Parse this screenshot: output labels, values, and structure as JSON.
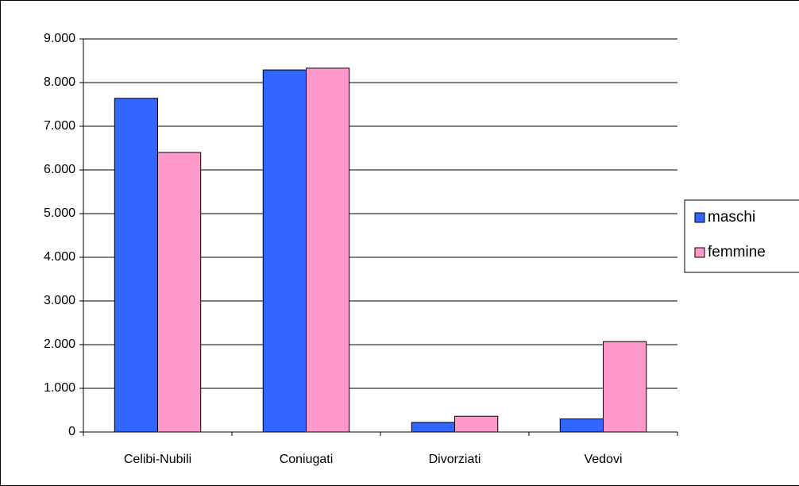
{
  "chart_data": {
    "type": "bar",
    "categories": [
      "Celibi-Nubili",
      "Coniugati",
      "Divorziati",
      "Vedovi"
    ],
    "series": [
      {
        "name": "maschi",
        "color": "#3366ff",
        "values": [
          7640,
          8290,
          220,
          300
        ]
      },
      {
        "name": "femmine",
        "color": "#ff99cc",
        "values": [
          6400,
          8330,
          360,
          2070
        ]
      }
    ],
    "ylim": [
      0,
      9000
    ],
    "yticks": [
      0,
      {
        "value": 1000,
        "label": "1.000"
      },
      {
        "value": 2000,
        "label": "2.000"
      },
      {
        "value": 3000,
        "label": "3.000"
      },
      {
        "value": 4000,
        "label": "4.000"
      },
      {
        "value": 5000,
        "label": "5.000"
      },
      {
        "value": 6000,
        "label": "6.000"
      },
      {
        "value": 7000,
        "label": "7.000"
      },
      {
        "value": 8000,
        "label": "8.000"
      },
      {
        "value": 9000,
        "label": "9.000"
      }
    ],
    "grid": true,
    "legend": "right"
  }
}
